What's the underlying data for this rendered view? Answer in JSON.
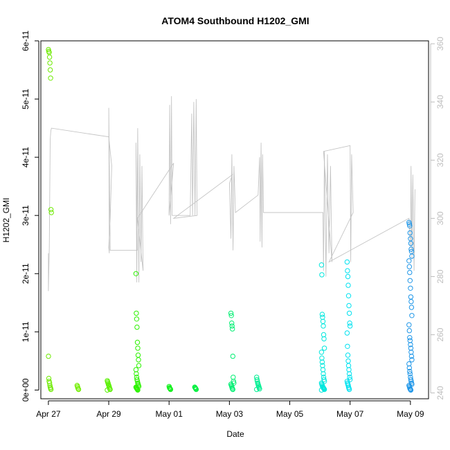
{
  "chart_data": {
    "type": "scatter",
    "title": "ATOM4 Southbound H1202_GMI",
    "xlabel": "Date",
    "ylabel": "H1202_GMI",
    "x_unit": "days since Apr 26 00:00",
    "xlim": [
      0.75,
      13.6
    ],
    "ylim": [
      -1.5e-12,
      6e-11
    ],
    "x_ticks": [
      {
        "label": "Apr 27",
        "value": 1
      },
      {
        "label": "Apr 29",
        "value": 3
      },
      {
        "label": "May 01",
        "value": 5
      },
      {
        "label": "May 03",
        "value": 7
      },
      {
        "label": "May 05",
        "value": 9
      },
      {
        "label": "May 07",
        "value": 11
      },
      {
        "label": "May 09",
        "value": 13
      }
    ],
    "y_ticks": [
      {
        "label": "0e+00",
        "value": 0
      },
      {
        "label": "1e-11",
        "value": 1e-11
      },
      {
        "label": "2e-11",
        "value": 2e-11
      },
      {
        "label": "3e-11",
        "value": 3e-11
      },
      {
        "label": "4e-11",
        "value": 4e-11
      },
      {
        "label": "5e-11",
        "value": 5e-11
      },
      {
        "label": "6e-11",
        "value": 6e-11
      }
    ],
    "secondary_axis": {
      "description": "right axis, grey (flight track secondary variable)",
      "range": [
        238,
        361
      ],
      "ticks": [
        {
          "label": "240",
          "value": 240
        },
        {
          "label": "260",
          "value": 260
        },
        {
          "label": "280",
          "value": 280
        },
        {
          "label": "300",
          "value": 300
        },
        {
          "label": "320",
          "value": 320
        },
        {
          "label": "340",
          "value": 340
        },
        {
          "label": "360",
          "value": 360
        }
      ]
    },
    "series": [
      {
        "name": "H1202_GMI",
        "marker": "open-circle",
        "clusters": [
          {
            "x": 1.05,
            "color": "#6dea00",
            "values": [
              5.85e-11,
              5.82e-11,
              5.8e-11,
              5.72e-11,
              5.62e-11,
              5.5e-11,
              5.36e-11,
              3.1e-11,
              3.05e-11,
              5.8e-12,
              2e-12,
              1.5e-12,
              1.2e-12,
              8e-13,
              5e-13,
              3e-13,
              1e-13
            ]
          },
          {
            "x": 2.0,
            "color": "#72ee00",
            "values": [
              8e-13,
              6e-13,
              4e-13,
              2e-13,
              1e-13
            ]
          },
          {
            "x": 3.0,
            "color": "#58f000",
            "values": [
              1.6e-12,
              1.4e-12,
              1.2e-12,
              1e-12,
              8e-13,
              6e-13,
              4e-13,
              2e-13,
              1e-13,
              0.0
            ]
          },
          {
            "x": 3.95,
            "color": "#2cf200",
            "values": [
              2e-11,
              1.32e-11,
              1.22e-11,
              1.08e-11,
              8.2e-12,
              7.2e-12,
              6e-12,
              5.2e-12,
              4.2e-12,
              3.5e-12,
              2.8e-12,
              2.2e-12,
              1.8e-12,
              1.5e-12,
              1.2e-12,
              1e-12,
              8e-13,
              6e-13,
              5e-13,
              4e-13,
              3e-13,
              2e-13,
              1e-13,
              0.0
            ]
          },
          {
            "x": 5.05,
            "color": "#10f01a",
            "values": [
              6e-13,
              4e-13,
              3e-13,
              2e-13,
              1e-13
            ]
          },
          {
            "x": 5.9,
            "color": "#06f040",
            "values": [
              5e-13,
              4e-13,
              3e-13,
              2e-13,
              1e-13
            ]
          },
          {
            "x": 7.1,
            "color": "#00ef72",
            "values": [
              1.32e-11,
              1.28e-11,
              1.15e-11,
              1.1e-11,
              1.05e-11,
              5.8e-12,
              2.2e-12,
              1.5e-12,
              1.2e-12,
              1e-12,
              8e-13,
              6e-13,
              4e-13,
              2e-13,
              1e-13
            ]
          },
          {
            "x": 7.95,
            "color": "#00ee92",
            "values": [
              2.2e-12,
              1.8e-12,
              1.5e-12,
              1.2e-12,
              1e-12,
              8e-13,
              6e-13,
              4e-13,
              2e-13,
              1e-13
            ]
          },
          {
            "x": 10.1,
            "color": "#00e7dd",
            "values": [
              2.15e-11,
              1.98e-11,
              1.3e-11,
              1.25e-11,
              1.18e-11,
              1.1e-11,
              9.5e-12,
              8.8e-12,
              7.2e-12,
              6.5e-12,
              5.5e-12,
              4.8e-12,
              4.2e-12,
              3.5e-12,
              2.8e-12,
              2.2e-12,
              1.8e-12,
              1.5e-12,
              1.2e-12,
              1e-12,
              8e-13,
              6e-13,
              5e-13,
              4e-13,
              3e-13,
              2e-13,
              1e-13,
              0.0
            ]
          },
          {
            "x": 10.95,
            "color": "#00e2f0",
            "values": [
              2.2e-11,
              2.05e-11,
              1.95e-11,
              1.8e-11,
              1.62e-11,
              1.45e-11,
              1.32e-11,
              1.15e-11,
              1.1e-11,
              9.8e-12,
              7.5e-12,
              6e-12,
              5e-12,
              4.2e-12,
              3.5e-12,
              2.8e-12,
              2.2e-12,
              1.8e-12,
              1.5e-12,
              1.2e-12,
              1e-12,
              8e-13,
              5e-13,
              3e-13,
              1e-13
            ]
          },
          {
            "x": 13.0,
            "color": "#1e96e8",
            "values": [
              2.88e-11,
              2.85e-11,
              2.82e-11,
              2.7e-11,
              2.6e-11,
              2.52e-11,
              2.42e-11,
              2.38e-11,
              2.3e-11,
              2.22e-11,
              2.12e-11,
              2.02e-11,
              1.88e-11,
              1.75e-11,
              1.6e-11,
              1.52e-11,
              1.42e-11,
              1.28e-11,
              1.12e-11,
              1.02e-11,
              9e-12,
              8.5e-12,
              7.8e-12,
              7.2e-12,
              6.5e-12,
              5.8e-12,
              5.2e-12,
              4.5e-12,
              3.8e-12,
              3.2e-12,
              2.8e-12,
              2.2e-12,
              1.8e-12,
              1.5e-12,
              1.2e-12,
              1e-12,
              8e-13,
              6e-13,
              4e-13,
              2e-13,
              1e-13,
              0.0
            ]
          }
        ]
      },
      {
        "name": "flight track (secondary axis)",
        "style": "grey-line",
        "color": "#c4c4c4",
        "points": [
          [
            1.0,
            288
          ],
          [
            1.0,
            275
          ],
          [
            1.03,
            290
          ],
          [
            1.06,
            327
          ],
          [
            1.08,
            330
          ],
          [
            1.1,
            331
          ],
          [
            3.0,
            328
          ],
          [
            3.1,
            318
          ],
          [
            3.05,
            300
          ],
          [
            3.0,
            290
          ],
          [
            3.02,
            288
          ],
          [
            3.0,
            338
          ],
          [
            3.05,
            289
          ],
          [
            3.95,
            289
          ],
          [
            3.9,
            326
          ],
          [
            3.93,
            278
          ],
          [
            3.96,
            331
          ],
          [
            4.0,
            278
          ],
          [
            4.03,
            322
          ],
          [
            4.07,
            285
          ],
          [
            4.1,
            318
          ],
          [
            4.14,
            282
          ],
          [
            3.95,
            300
          ],
          [
            5.15,
            319
          ],
          [
            5.0,
            301
          ],
          [
            5.02,
            339
          ],
          [
            5.05,
            298
          ],
          [
            5.08,
            342
          ],
          [
            5.1,
            301
          ],
          [
            5.7,
            301
          ],
          [
            5.75,
            336
          ],
          [
            5.78,
            301
          ],
          [
            5.82,
            340
          ],
          [
            5.86,
            301
          ],
          [
            5.9,
            341
          ],
          [
            5.93,
            301
          ],
          [
            5.15,
            300
          ],
          [
            7.1,
            315
          ],
          [
            7.0,
            312
          ],
          [
            7.05,
            293
          ],
          [
            7.08,
            322
          ],
          [
            7.12,
            289
          ],
          [
            7.15,
            318
          ],
          [
            7.2,
            302
          ],
          [
            7.95,
            308
          ],
          [
            8.0,
            321
          ],
          [
            8.02,
            292
          ],
          [
            8.05,
            326
          ],
          [
            8.08,
            290
          ],
          [
            8.1,
            322
          ],
          [
            8.13,
            302
          ],
          [
            10.1,
            302
          ],
          [
            10.12,
            282
          ],
          [
            10.15,
            323
          ],
          [
            10.2,
            280
          ],
          [
            10.25,
            322
          ],
          [
            10.3,
            288
          ],
          [
            10.35,
            318
          ],
          [
            10.4,
            285
          ],
          [
            10.12,
            323
          ],
          [
            11.0,
            325
          ],
          [
            11.02,
            285
          ],
          [
            11.05,
            322
          ],
          [
            11.1,
            302
          ],
          [
            10.3,
            285
          ],
          [
            12.95,
            300
          ],
          [
            13.0,
            290
          ],
          [
            13.02,
            318
          ],
          [
            13.05,
            286
          ],
          [
            13.08,
            315
          ],
          [
            13.12,
            282
          ],
          [
            13.15,
            310
          ]
        ]
      }
    ]
  }
}
